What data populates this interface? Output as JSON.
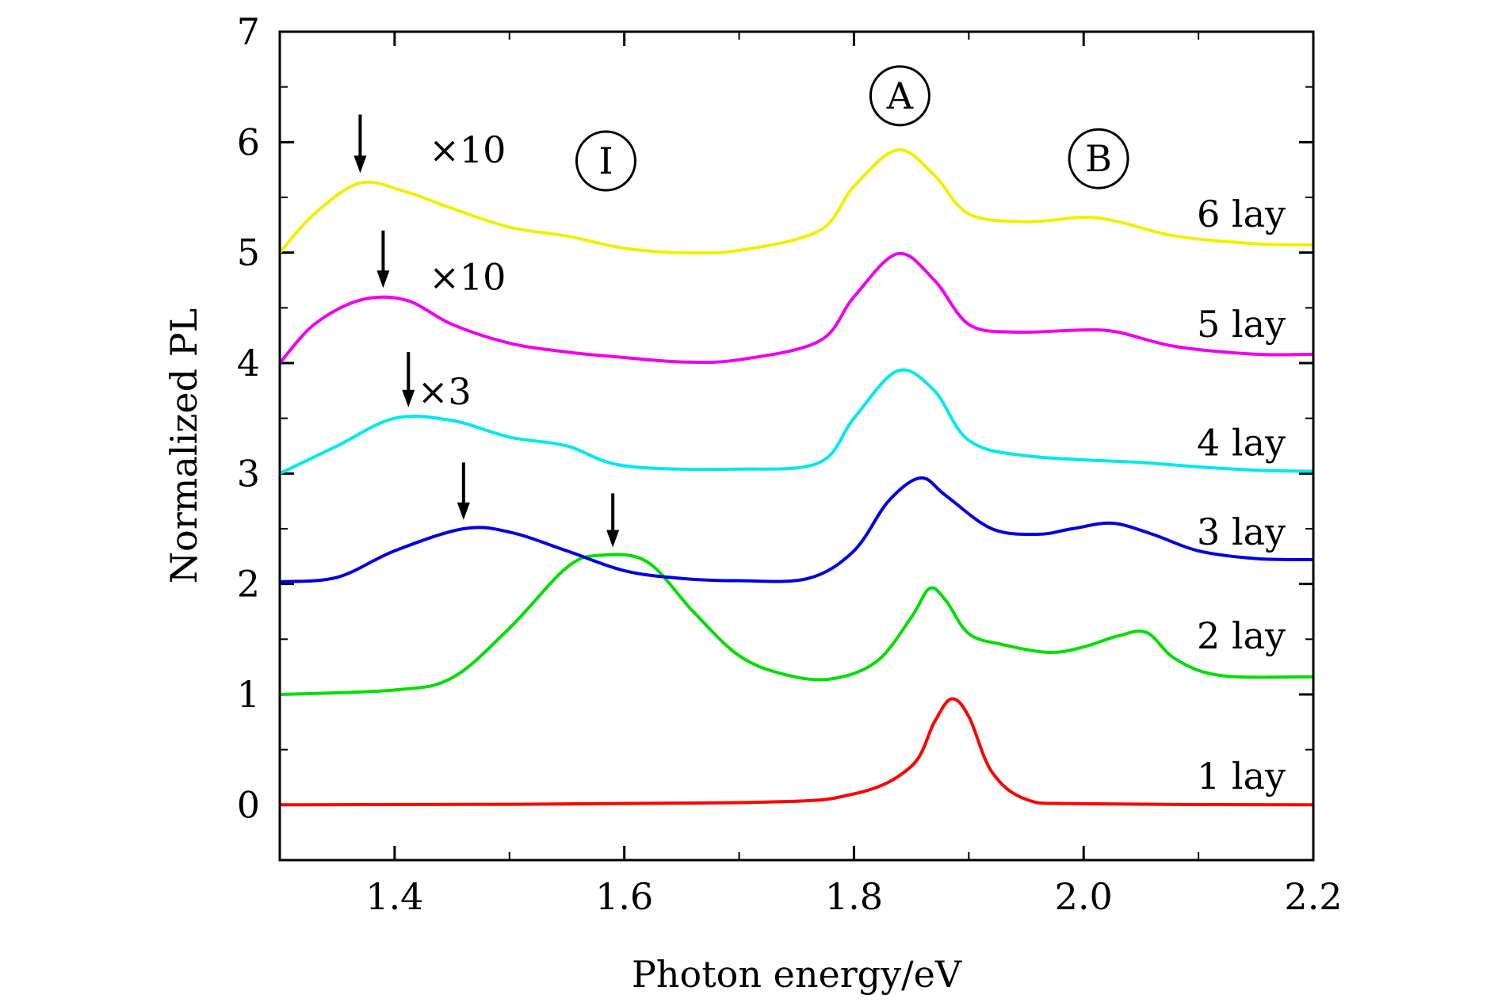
{
  "chart_data": {
    "type": "line",
    "xlabel": "Photon energy/eV",
    "ylabel": "Normalized PL",
    "xlim": [
      1.3,
      2.2
    ],
    "ylim": [
      -0.5,
      7
    ],
    "x_ticks": [
      "1.4",
      "1.6",
      "1.8",
      "2.0",
      "2.2"
    ],
    "y_ticks": [
      "0",
      "1",
      "2",
      "3",
      "4",
      "5",
      "6",
      "7"
    ],
    "grid": false,
    "series": [
      {
        "name": "1 lay",
        "color": "#ff0000",
        "x": [
          1.3,
          1.7,
          1.8,
          1.85,
          1.87,
          1.885,
          1.9,
          1.92,
          1.95,
          2.0,
          2.2
        ],
        "y": [
          0.0,
          0.02,
          0.1,
          0.35,
          0.75,
          0.96,
          0.8,
          0.3,
          0.05,
          0.01,
          0.0
        ]
      },
      {
        "name": "2 lay",
        "color": "#00e000",
        "x": [
          1.3,
          1.4,
          1.45,
          1.5,
          1.55,
          1.58,
          1.62,
          1.66,
          1.7,
          1.74,
          1.78,
          1.82,
          1.85,
          1.866,
          1.88,
          1.9,
          1.93,
          1.97,
          2.0,
          2.03,
          2.055,
          2.08,
          2.12,
          2.2
        ],
        "y": [
          1.0,
          1.04,
          1.15,
          1.6,
          2.15,
          2.26,
          2.2,
          1.75,
          1.35,
          1.18,
          1.14,
          1.3,
          1.7,
          1.96,
          1.85,
          1.55,
          1.45,
          1.38,
          1.43,
          1.53,
          1.56,
          1.32,
          1.17,
          1.16
        ]
      },
      {
        "name": "3 lay",
        "color": "#0000e0",
        "x": [
          1.3,
          1.35,
          1.4,
          1.46,
          1.5,
          1.55,
          1.6,
          1.65,
          1.7,
          1.76,
          1.8,
          1.83,
          1.858,
          1.88,
          1.92,
          1.96,
          1.99,
          2.025,
          2.06,
          2.1,
          2.15,
          2.2
        ],
        "y": [
          2.02,
          2.06,
          2.3,
          2.5,
          2.47,
          2.3,
          2.12,
          2.05,
          2.03,
          2.05,
          2.3,
          2.75,
          2.96,
          2.8,
          2.5,
          2.45,
          2.5,
          2.55,
          2.45,
          2.3,
          2.23,
          2.22
        ]
      },
      {
        "name": "4 lay",
        "color": "#00e8f0",
        "x": [
          1.3,
          1.35,
          1.4,
          1.45,
          1.5,
          1.55,
          1.6,
          1.7,
          1.77,
          1.8,
          1.838,
          1.87,
          1.9,
          1.95,
          2.05,
          2.1,
          2.15,
          2.2
        ],
        "y": [
          3.0,
          3.25,
          3.5,
          3.48,
          3.33,
          3.25,
          3.07,
          3.04,
          3.1,
          3.5,
          3.93,
          3.75,
          3.3,
          3.16,
          3.1,
          3.06,
          3.03,
          3.02
        ]
      },
      {
        "name": "5 lay",
        "color": "#f000f0",
        "x": [
          1.3,
          1.33,
          1.37,
          1.41,
          1.45,
          1.5,
          1.55,
          1.6,
          1.65,
          1.7,
          1.77,
          1.8,
          1.838,
          1.87,
          1.9,
          1.94,
          2.0,
          2.03,
          2.08,
          2.15,
          2.2
        ],
        "y": [
          4.0,
          4.35,
          4.57,
          4.57,
          4.35,
          4.18,
          4.1,
          4.05,
          4.01,
          4.03,
          4.2,
          4.6,
          4.99,
          4.75,
          4.35,
          4.28,
          4.3,
          4.28,
          4.15,
          4.08,
          4.08
        ]
      },
      {
        "name": "6 lay",
        "color": "#f0f000",
        "x": [
          1.3,
          1.33,
          1.37,
          1.41,
          1.45,
          1.5,
          1.55,
          1.6,
          1.65,
          1.7,
          1.77,
          1.8,
          1.838,
          1.87,
          1.9,
          1.95,
          2.0,
          2.03,
          2.08,
          2.15,
          2.2
        ],
        "y": [
          5.0,
          5.35,
          5.63,
          5.55,
          5.4,
          5.23,
          5.15,
          5.04,
          5.0,
          5.02,
          5.2,
          5.6,
          5.93,
          5.7,
          5.35,
          5.28,
          5.32,
          5.28,
          5.15,
          5.08,
          5.07
        ]
      }
    ],
    "annotations": {
      "peak_labels": [
        {
          "text": "A",
          "x": 1.84,
          "y": 6.42
        },
        {
          "text": "B",
          "x": 2.013,
          "y": 5.85
        },
        {
          "text": "I",
          "x": 1.584,
          "y": 5.83
        }
      ],
      "multipliers": [
        {
          "text": "×10",
          "x": 1.43,
          "y": 5.93
        },
        {
          "text": "×10",
          "x": 1.43,
          "y": 4.78
        },
        {
          "text": "×3",
          "x": 1.42,
          "y": 3.74
        }
      ],
      "arrows": [
        {
          "x": 1.37,
          "y_from": 6.25,
          "y_to": 5.72
        },
        {
          "x": 1.39,
          "y_from": 5.2,
          "y_to": 4.68
        },
        {
          "x": 1.412,
          "y_from": 4.1,
          "y_to": 3.6
        },
        {
          "x": 1.46,
          "y_from": 3.1,
          "y_to": 2.58
        },
        {
          "x": 1.59,
          "y_from": 2.82,
          "y_to": 2.33
        }
      ],
      "series_labels": [
        {
          "text": "6 lay",
          "y": 5.35
        },
        {
          "text": "5 lay",
          "y": 4.35
        },
        {
          "text": "4 lay",
          "y": 3.28
        },
        {
          "text": "3 lay",
          "y": 2.47
        },
        {
          "text": "2 lay",
          "y": 1.53
        },
        {
          "text": "1 lay",
          "y": 0.26
        }
      ]
    }
  }
}
